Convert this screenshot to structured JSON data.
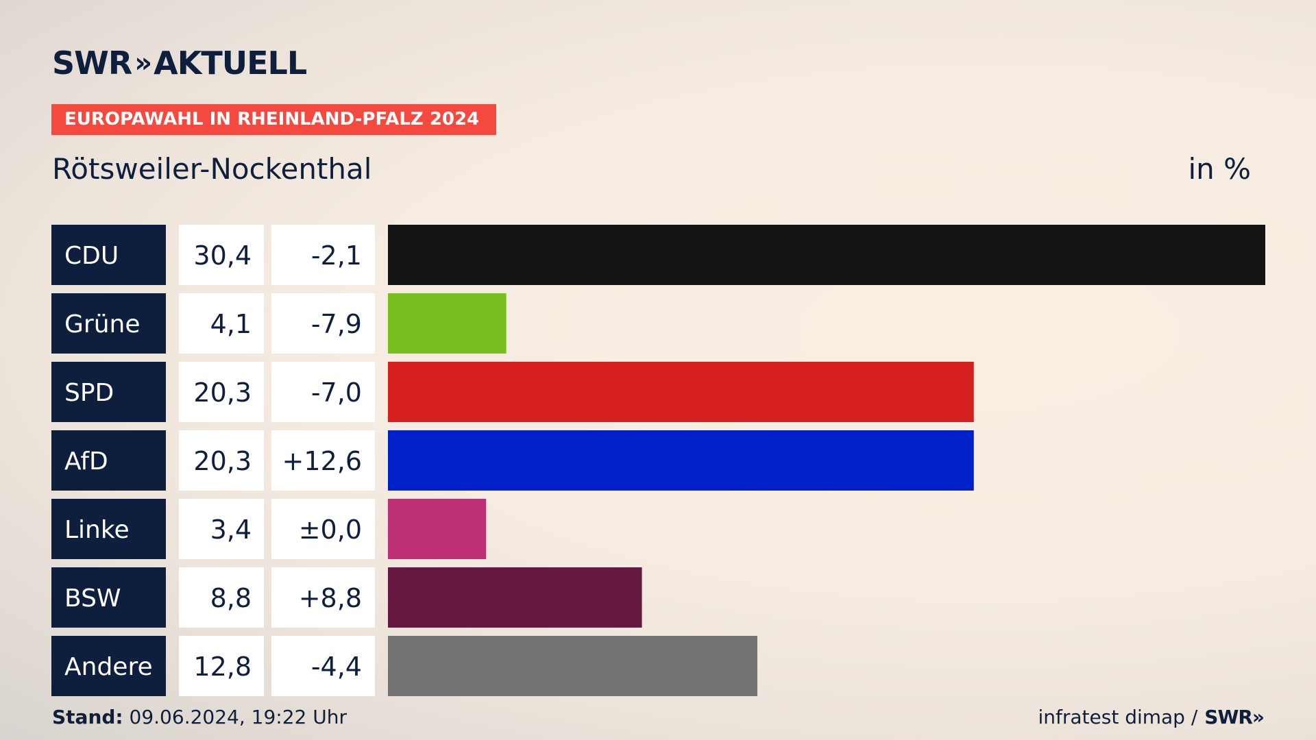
{
  "header": {
    "logo_text": "SWR",
    "logo_chevrons": "»",
    "logo_suffix": "AKTUELL",
    "event_badge": "EUROPAWAHL IN RHEINLAND-PFALZ 2024",
    "region": "Rötsweiler-Nockenthal",
    "unit": "in %"
  },
  "colors": {
    "navy": "#0e1f3e",
    "badge": "#f4493e"
  },
  "chart_data": {
    "type": "bar",
    "orientation": "horizontal",
    "categories": [
      "CDU",
      "Grüne",
      "SPD",
      "AfD",
      "Linke",
      "BSW",
      "Andere"
    ],
    "values": [
      30.4,
      4.1,
      20.3,
      20.3,
      3.4,
      8.8,
      12.8
    ],
    "value_labels": [
      "30,4",
      "4,1",
      "20,3",
      "20,3",
      "3,4",
      "8,8",
      "12,8"
    ],
    "change_labels": [
      "-2,1",
      "-7,9",
      "-7,0",
      "+12,6",
      "±0,0",
      "+8,8",
      "-4,4"
    ],
    "colors": [
      "#141414",
      "#78be1e",
      "#d61f1f",
      "#0021c8",
      "#bd3075",
      "#661940",
      "#737373"
    ],
    "xlim": [
      0,
      30.4
    ]
  },
  "footer": {
    "stand_label": "Stand:",
    "stand_value": "09.06.2024, 19:22 Uhr",
    "source": "infratest dimap /",
    "source_logo": "SWR»"
  }
}
